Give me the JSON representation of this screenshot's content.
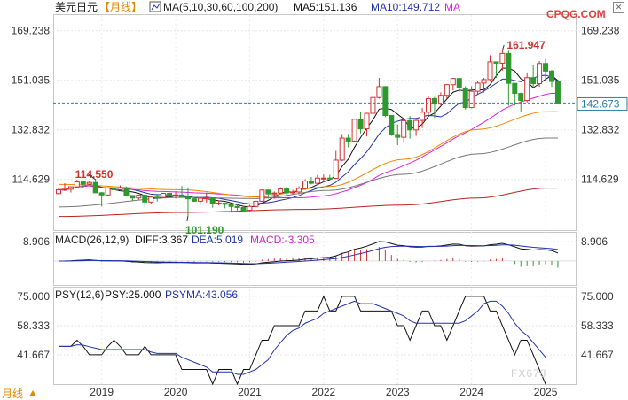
{
  "header": {
    "pair": "美元日元",
    "period_tag": "【月线】",
    "ma_settings": "MA(5,10,30,60,100,200)",
    "ma5_label": "MA5:151.136",
    "ma10_label": "MA10:149.712",
    "ma_extra": "MA"
  },
  "watermark_top": "CPQG.COM",
  "watermark_bottom": "FX678",
  "period_button": "月线",
  "price_panel": {
    "y_ticks": [
      "169.238",
      "151.035",
      "132.832",
      "114.629"
    ],
    "y_tick_values": [
      169.238,
      151.035,
      132.832,
      114.629
    ],
    "ylim": [
      96,
      175
    ],
    "last_price": "142.673",
    "last_price_value": 142.673,
    "high_label": "161.947",
    "high_value": 161.947,
    "high_date": "2024-06",
    "low_label": "101.190",
    "low_value": 101.19,
    "low_date": "2020-03",
    "early_high_label": "114.550",
    "early_high_value": 114.55,
    "early_high_date": "2018-12"
  },
  "macd_panel": {
    "title": "MACD(26,12,9)",
    "diff_label": "DIFF:3.367",
    "dea_label": "DEA:5.019",
    "macd_label": "MACD:-3.305",
    "y_tick": "8.906",
    "y_tick_value": 8.906,
    "ylim": [
      -11,
      13
    ]
  },
  "psy_panel": {
    "title": "PSY(12,6)",
    "psy_label": "PSY:25.000",
    "psyma_label": "PSYMA:43.056",
    "y_ticks": [
      "75.000",
      "58.333",
      "41.667"
    ],
    "y_tick_values": [
      75,
      58.333,
      41.667
    ],
    "ylim": [
      25,
      80
    ]
  },
  "x_ticks": [
    "2019",
    "2020",
    "2021",
    "2022",
    "2023",
    "2024",
    "2025"
  ],
  "colors": {
    "up": "#d43030",
    "down": "#2e9a2e",
    "ma5": "#111111",
    "ma10": "#2233aa",
    "ma30": "#dd22dd",
    "ma60": "#ee8800",
    "ma100": "#777777",
    "ma200": "#bb2222",
    "dea": "#cc22cc",
    "psy": "#111111",
    "psyma": "#2233aa",
    "axis_text": "#333333",
    "high_label": "#d43030",
    "low_label": "#2e9a2e"
  },
  "chart_data": {
    "type": "candlestick",
    "x_start": "2018-06",
    "interval": "month",
    "ohlc": [
      [
        109.4,
        111.3,
        109.1,
        110.8
      ],
      [
        110.8,
        113.2,
        110.3,
        111.0
      ],
      [
        111.0,
        112.1,
        109.8,
        111.9
      ],
      [
        111.9,
        114.5,
        111.7,
        113.7
      ],
      [
        113.7,
        114.1,
        111.4,
        112.9
      ],
      [
        112.9,
        114.0,
        112.5,
        113.5
      ],
      [
        113.5,
        114.55,
        109.6,
        109.7
      ],
      [
        109.7,
        110.0,
        104.7,
        108.9
      ],
      [
        108.9,
        111.5,
        108.5,
        111.4
      ],
      [
        111.4,
        112.1,
        109.7,
        110.8
      ],
      [
        110.8,
        112.4,
        110.8,
        111.4
      ],
      [
        111.4,
        112.0,
        108.3,
        108.7
      ],
      [
        108.7,
        108.8,
        106.8,
        107.8
      ],
      [
        107.8,
        109.0,
        107.2,
        108.8
      ],
      [
        108.8,
        109.3,
        104.5,
        106.3
      ],
      [
        106.3,
        108.5,
        105.5,
        108.1
      ],
      [
        108.1,
        109.3,
        106.5,
        108.0
      ],
      [
        108.0,
        109.6,
        107.9,
        109.5
      ],
      [
        109.5,
        109.7,
        108.4,
        108.6
      ],
      [
        108.6,
        110.3,
        107.6,
        108.9
      ],
      [
        108.9,
        112.2,
        108.3,
        108.1
      ],
      [
        108.1,
        111.7,
        101.19,
        107.5
      ],
      [
        107.5,
        108.1,
        106.4,
        106.6
      ],
      [
        106.6,
        107.8,
        105.9,
        107.7
      ],
      [
        107.7,
        109.8,
        106.1,
        107.8
      ],
      [
        107.8,
        107.9,
        104.2,
        105.9
      ],
      [
        105.9,
        106.9,
        105.1,
        105.9
      ],
      [
        105.9,
        106.1,
        104.0,
        105.5
      ],
      [
        105.5,
        105.8,
        102.9,
        104.7
      ],
      [
        104.7,
        105.6,
        103.2,
        104.3
      ],
      [
        104.3,
        104.8,
        102.6,
        103.3
      ],
      [
        103.3,
        105.2,
        102.6,
        104.7
      ],
      [
        104.7,
        106.7,
        104.4,
        106.6
      ],
      [
        106.6,
        110.9,
        106.4,
        110.7
      ],
      [
        110.7,
        110.9,
        107.5,
        109.3
      ],
      [
        109.3,
        110.2,
        107.5,
        109.6
      ],
      [
        109.6,
        111.7,
        109.2,
        111.1
      ],
      [
        111.1,
        111.7,
        109.1,
        109.7
      ],
      [
        109.7,
        110.8,
        109.1,
        110.0
      ],
      [
        110.0,
        112.1,
        109.1,
        111.3
      ],
      [
        111.3,
        114.7,
        110.8,
        114.0
      ],
      [
        114.0,
        115.5,
        112.8,
        113.2
      ],
      [
        113.2,
        116.3,
        112.6,
        115.1
      ],
      [
        115.1,
        116.4,
        113.5,
        115.1
      ],
      [
        115.1,
        116.3,
        114.4,
        115.0
      ],
      [
        115.0,
        125.1,
        114.7,
        121.7
      ],
      [
        121.7,
        131.3,
        121.3,
        129.8
      ],
      [
        129.8,
        131.3,
        126.4,
        128.7
      ],
      [
        128.7,
        137.0,
        128.6,
        136.7
      ],
      [
        136.7,
        139.4,
        131.5,
        133.2
      ],
      [
        133.2,
        139.1,
        130.4,
        138.9
      ],
      [
        138.9,
        145.9,
        138.9,
        144.7
      ],
      [
        144.7,
        151.9,
        144.3,
        148.7
      ],
      [
        148.7,
        148.9,
        137.5,
        138.1
      ],
      [
        138.1,
        138.2,
        130.6,
        131.1
      ],
      [
        131.1,
        134.8,
        127.2,
        130.1
      ],
      [
        130.1,
        137.1,
        128.1,
        136.2
      ],
      [
        136.2,
        137.9,
        129.6,
        132.8
      ],
      [
        132.8,
        136.6,
        130.6,
        136.3
      ],
      [
        136.3,
        140.9,
        133.5,
        139.3
      ],
      [
        139.3,
        145.1,
        138.4,
        144.3
      ],
      [
        144.3,
        144.9,
        137.2,
        142.3
      ],
      [
        142.3,
        146.6,
        141.5,
        145.5
      ],
      [
        145.5,
        149.7,
        144.4,
        149.4
      ],
      [
        149.4,
        151.7,
        147.3,
        151.7
      ],
      [
        151.7,
        151.9,
        146.7,
        148.2
      ],
      [
        148.2,
        148.8,
        140.3,
        141.0
      ],
      [
        141.0,
        148.8,
        140.8,
        147.0
      ],
      [
        147.0,
        150.9,
        145.9,
        150.0
      ],
      [
        150.0,
        151.9,
        146.5,
        151.3
      ],
      [
        151.3,
        160.2,
        151.0,
        157.8
      ],
      [
        157.8,
        157.9,
        151.9,
        157.3
      ],
      [
        157.3,
        161.947,
        154.6,
        160.9
      ],
      [
        160.9,
        161.9,
        141.7,
        149.9
      ],
      [
        149.9,
        149.4,
        141.7,
        146.2
      ],
      [
        146.2,
        146.5,
        139.6,
        143.6
      ],
      [
        143.6,
        153.9,
        142.9,
        152.0
      ],
      [
        152.0,
        156.8,
        148.6,
        149.8
      ],
      [
        149.8,
        158.1,
        148.6,
        157.2
      ],
      [
        157.2,
        158.9,
        151.7,
        154.4
      ],
      [
        154.4,
        154.8,
        148.6,
        150.6
      ],
      [
        150.6,
        151.3,
        142.5,
        142.673
      ]
    ],
    "psy": [
      46.5,
      46.5,
      46.5,
      50,
      46.5,
      41.7,
      41.7,
      41.7,
      46.5,
      50,
      46.5,
      41.7,
      41.7,
      41.7,
      46.5,
      41.7,
      41.7,
      41.7,
      41.7,
      41.7,
      33.3,
      33.3,
      33.3,
      33.3,
      33.3,
      25,
      33.3,
      33.3,
      33.3,
      25,
      33.3,
      33.3,
      41.7,
      50,
      50,
      58.3,
      58.3,
      58.3,
      58.3,
      58.3,
      66.7,
      66.7,
      66.7,
      75,
      66.7,
      66.7,
      75,
      75,
      75,
      66.7,
      66.7,
      66.7,
      66.7,
      66.7,
      66.7,
      58.3,
      58.3,
      50,
      58.3,
      66.7,
      66.7,
      58.3,
      58.3,
      50,
      58.3,
      66.7,
      75,
      75,
      75,
      75,
      66.7,
      66.7,
      58.3,
      50,
      41.7,
      50,
      50,
      41.7,
      33.3,
      25
    ]
  }
}
